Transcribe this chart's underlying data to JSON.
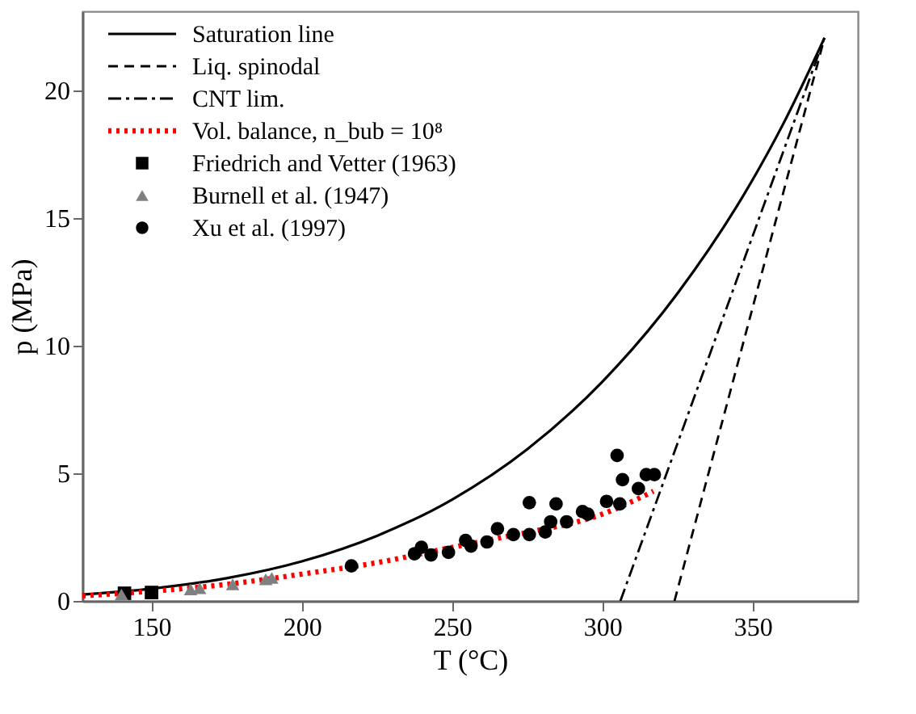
{
  "chart_data": {
    "type": "line",
    "xlabel": "T (°C)",
    "ylabel": "p (MPa)",
    "xlim": [
      127,
      385
    ],
    "ylim": [
      0,
      23.1
    ],
    "xticks": [
      150,
      200,
      250,
      300,
      350
    ],
    "yticks": [
      0,
      5,
      10,
      15,
      20
    ],
    "grid": false,
    "legend": "top left",
    "series": [
      {
        "name": "Saturation line",
        "line_style": "solid",
        "color": "#000000",
        "x": [
          127,
          150,
          175,
          200,
          225,
          250,
          275,
          300,
          325,
          350,
          360,
          373.9
        ],
        "values": [
          0.25,
          0.48,
          0.89,
          1.55,
          2.55,
          3.97,
          5.94,
          8.59,
          12.05,
          16.5,
          18.65,
          22.06
        ]
      },
      {
        "name": "Liq. spinodal",
        "line_style": "dashed",
        "color": "#000000",
        "x": [
          324,
          373.9
        ],
        "values": [
          0,
          22.06
        ]
      },
      {
        "name": "CNT lim.",
        "line_style": "dashdot",
        "color": "#000000",
        "x": [
          306,
          373.9
        ],
        "values": [
          0,
          22.06
        ]
      },
      {
        "name": "Vol. balance, n_bub = 10⁸",
        "line_style": "dotted",
        "color": "#ff0000",
        "x": [
          127,
          150,
          175,
          200,
          225,
          250,
          265,
          280,
          290,
          300,
          310,
          317
        ],
        "values": [
          0.2,
          0.38,
          0.65,
          1.05,
          1.5,
          2.1,
          2.45,
          2.8,
          3.05,
          3.4,
          3.9,
          4.3
        ]
      },
      {
        "name": "Friedrich and Vetter (1963)",
        "type": "scatter",
        "marker": "square",
        "color": "#000000",
        "x": [
          141,
          150
        ],
        "values": [
          0.3,
          0.33
        ]
      },
      {
        "name": "Burnell et al. (1947)",
        "type": "scatter",
        "marker": "triangle",
        "color": "#808080",
        "x": [
          140,
          163,
          166,
          177,
          188,
          190
        ],
        "values": [
          0.25,
          0.45,
          0.5,
          0.65,
          0.85,
          0.9
        ]
      },
      {
        "name": "Xu et al. (1997)",
        "type": "scatter",
        "marker": "circle",
        "color": "#000000",
        "x": [
          216.5,
          237.5,
          239.8,
          243,
          248.8,
          254.5,
          256.3,
          261.6,
          265.1,
          270.4,
          275.7,
          275.7,
          281,
          282.8,
          284.6,
          288.1,
          293.4,
          295.2,
          301.4,
          304.9,
          305.8,
          306.7,
          312,
          314.6,
          317.3
        ],
        "values": [
          1.37,
          1.85,
          2.1,
          1.8,
          1.9,
          2.37,
          2.15,
          2.31,
          2.83,
          2.6,
          2.6,
          3.85,
          2.7,
          3.1,
          3.8,
          3.1,
          3.5,
          3.4,
          3.9,
          5.7,
          3.8,
          4.75,
          4.4,
          4.95,
          4.95
        ]
      }
    ]
  }
}
